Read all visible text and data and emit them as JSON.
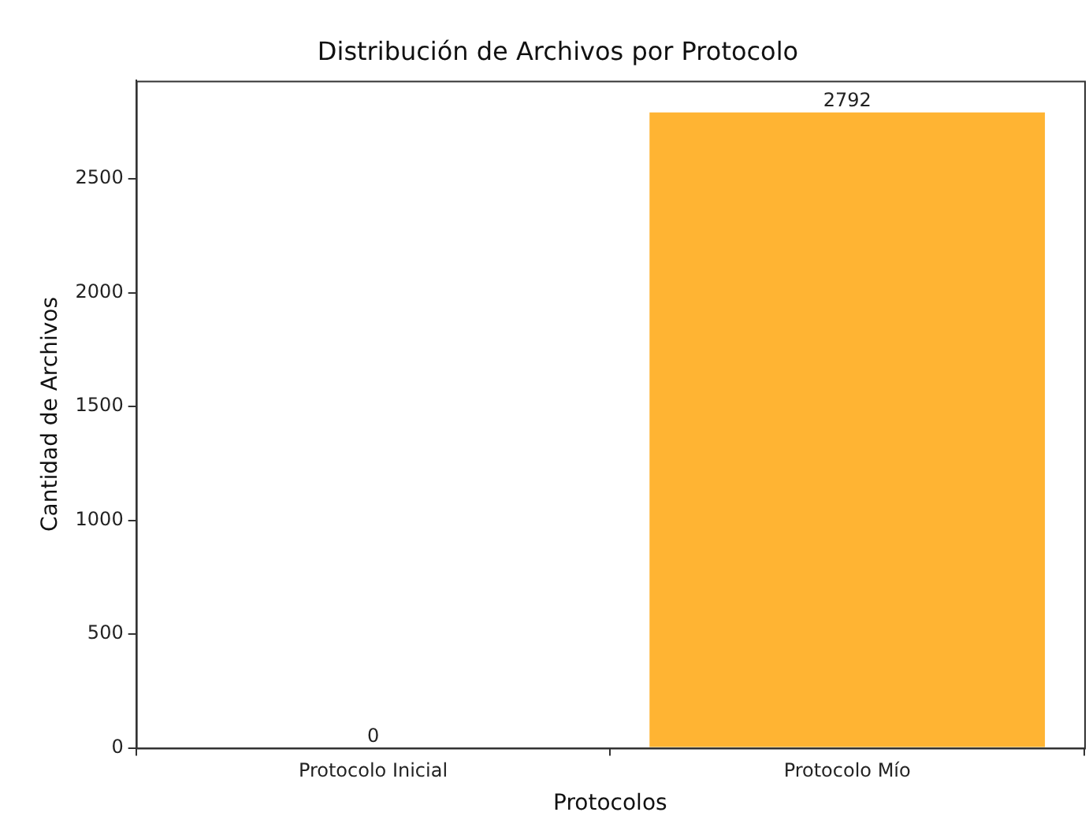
{
  "chart_data": {
    "type": "bar",
    "title": "Distribución de Archivos por Protocolo",
    "xlabel": "Protocolos",
    "ylabel": "Cantidad de Archivos",
    "categories": [
      "Protocolo Inicial",
      "Protocolo Mío"
    ],
    "values": [
      0,
      2792
    ],
    "color": "#ffb433",
    "ylim": [
      0,
      2932
    ],
    "yticks": [
      0,
      500,
      1000,
      1500,
      2000,
      2500
    ],
    "data_labels": true,
    "grid": false,
    "legend": false
  }
}
